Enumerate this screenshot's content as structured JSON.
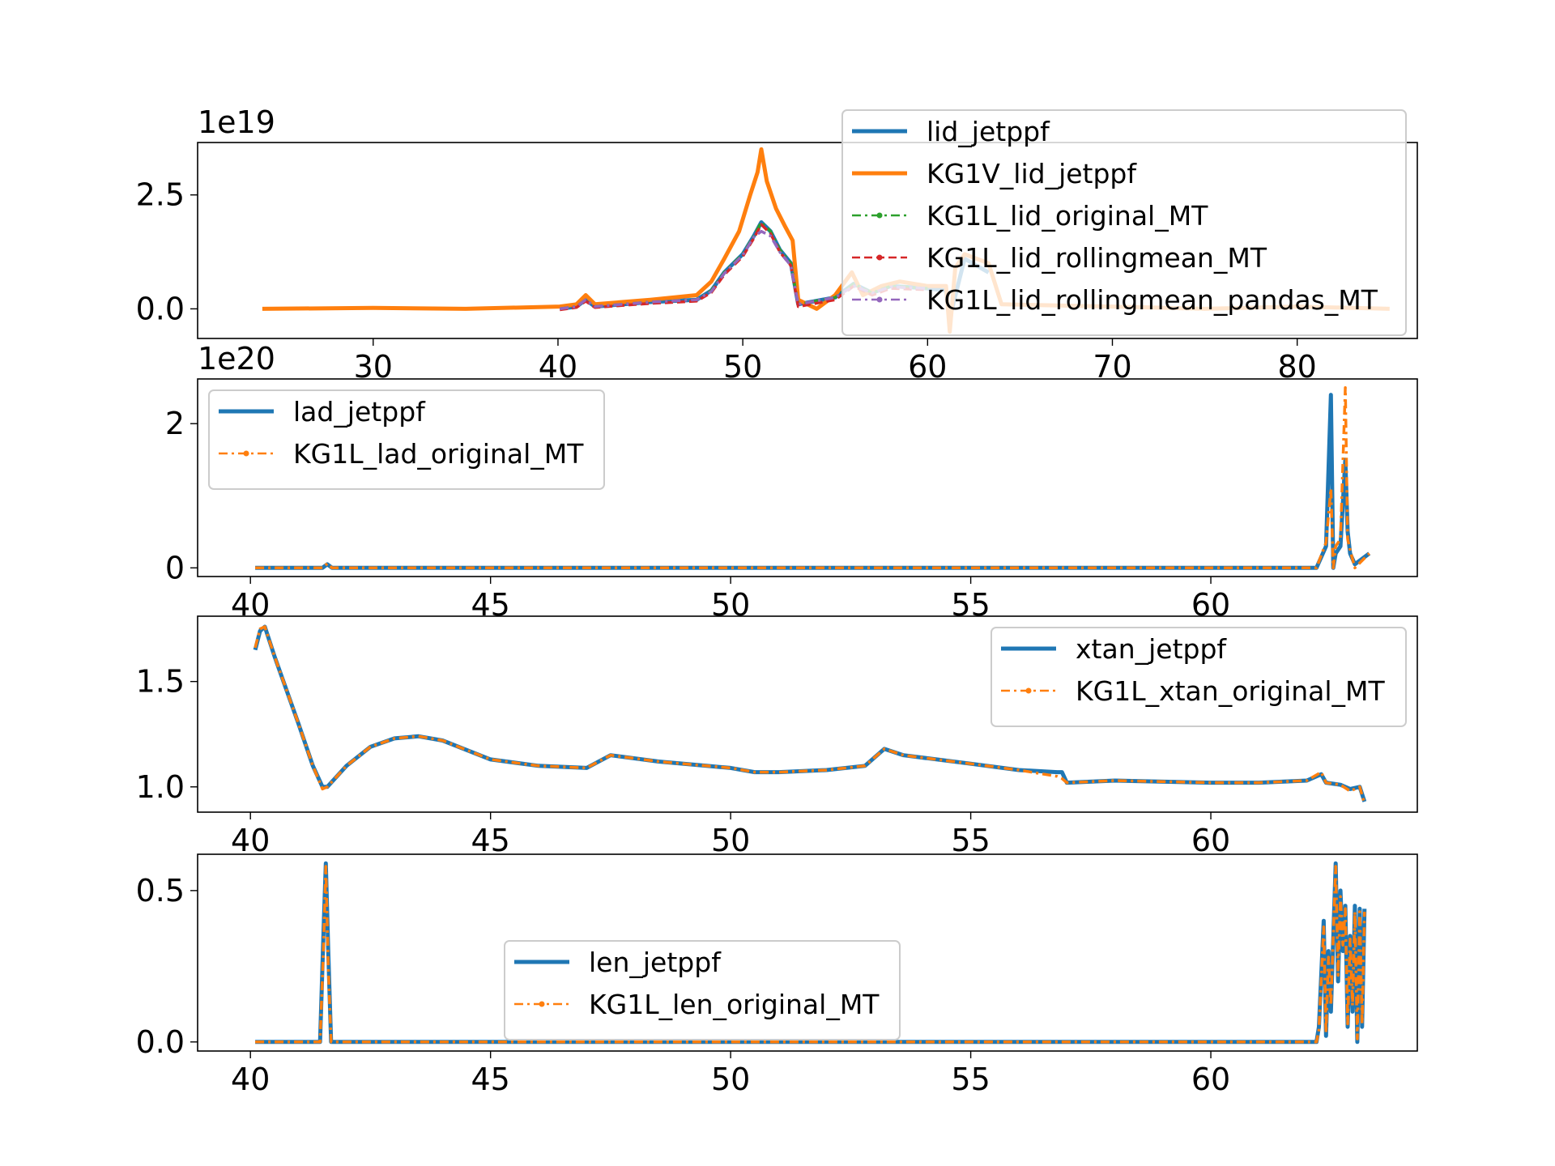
{
  "chart_data": [
    {
      "type": "line",
      "offset_text": "1e19",
      "xlim": [
        20.5,
        86.5
      ],
      "ylim": [
        -0.65,
        3.65
      ],
      "xticks": [
        30,
        40,
        50,
        60,
        70,
        80
      ],
      "yticks": [
        0.0,
        2.5
      ],
      "ytick_labels": [
        "0.0",
        "2.5"
      ],
      "legend_position": "upper-right",
      "series": [
        {
          "name": "lid_jetppf",
          "color": "#1f77b4",
          "style": "solid",
          "x": [
            40.1,
            41.0,
            41.5,
            42.0,
            45.0,
            47.5,
            48.3,
            49.0,
            50.0,
            50.6,
            51.0,
            51.5,
            52.0,
            52.6,
            53.0,
            55.0,
            56.0,
            57.0,
            58.0,
            60.0,
            61.0,
            61.2,
            62.0,
            63.3
          ],
          "y": [
            0.0,
            0.05,
            0.2,
            0.05,
            0.15,
            0.2,
            0.4,
            0.8,
            1.2,
            1.6,
            1.9,
            1.7,
            1.3,
            1.0,
            0.1,
            0.25,
            0.55,
            0.35,
            0.5,
            0.45,
            0.4,
            -0.2,
            1.1,
            0.8
          ]
        },
        {
          "name": "KG1V_lid_jetppf",
          "color": "#ff7f0e",
          "style": "solid",
          "x": [
            24.0,
            30.0,
            35.0,
            40.1,
            41.0,
            41.5,
            42.0,
            45.0,
            47.5,
            48.3,
            49.0,
            49.8,
            50.4,
            50.8,
            51.0,
            51.3,
            51.8,
            52.3,
            52.7,
            53.0,
            54.0,
            55.0,
            55.9,
            56.5,
            57.5,
            58.5,
            60.0,
            61.0,
            61.2,
            61.5,
            62.0,
            63.3,
            64.0,
            70.0,
            75.0,
            80.0,
            85.0
          ],
          "y": [
            0.0,
            0.02,
            0.0,
            0.05,
            0.1,
            0.3,
            0.1,
            0.2,
            0.3,
            0.6,
            1.1,
            1.7,
            2.5,
            3.0,
            3.5,
            2.8,
            2.2,
            1.8,
            1.5,
            0.2,
            0.0,
            0.3,
            0.8,
            0.3,
            0.5,
            0.6,
            0.5,
            0.5,
            -0.5,
            0.9,
            1.2,
            1.0,
            0.1,
            0.05,
            0.0,
            0.05,
            0.0
          ]
        },
        {
          "name": "KG1L_lid_original_MT",
          "color": "#2ca02c",
          "style": "dashdot",
          "x": [
            40.1,
            41.0,
            41.5,
            42.0,
            45.0,
            47.5,
            48.3,
            49.0,
            50.0,
            50.6,
            51.0,
            51.5,
            52.0,
            52.6,
            53.0,
            55.0,
            56.0,
            57.0,
            58.0,
            60.0
          ],
          "y": [
            0.0,
            0.05,
            0.2,
            0.05,
            0.15,
            0.2,
            0.4,
            0.8,
            1.2,
            1.6,
            1.9,
            1.7,
            1.3,
            1.0,
            0.1,
            0.25,
            0.55,
            0.35,
            0.5,
            0.45
          ]
        },
        {
          "name": "KG1L_lid_rollingmean_MT",
          "color": "#d62728",
          "style": "dashed",
          "x": [
            40.1,
            41.0,
            41.5,
            42.0,
            45.0,
            47.5,
            48.3,
            49.0,
            50.0,
            50.6,
            51.0,
            51.5,
            52.0,
            52.6,
            53.0,
            55.0,
            56.0,
            57.0,
            58.0,
            60.0
          ],
          "y": [
            -0.02,
            0.03,
            0.17,
            0.03,
            0.12,
            0.17,
            0.36,
            0.75,
            1.15,
            1.55,
            1.85,
            1.65,
            1.25,
            0.95,
            0.05,
            0.2,
            0.5,
            0.3,
            0.45,
            0.42
          ]
        },
        {
          "name": "KG1L_lid_rollingmean_pandas_MT",
          "color": "#9467bd",
          "style": "dashdot",
          "x": [
            40.1,
            41.0,
            41.5,
            42.0,
            45.0,
            47.5,
            48.3,
            49.0,
            50.0,
            50.6,
            51.0,
            51.5,
            52.0,
            52.6,
            53.0,
            55.0,
            56.0,
            57.0,
            58.0,
            60.0
          ],
          "y": [
            0.0,
            0.05,
            0.2,
            0.05,
            0.15,
            0.2,
            0.38,
            0.78,
            1.18,
            1.58,
            1.7,
            1.6,
            1.25,
            0.95,
            0.1,
            0.25,
            0.5,
            0.35,
            0.48,
            0.45
          ]
        }
      ]
    },
    {
      "type": "line",
      "offset_text": "1e20",
      "xlim": [
        38.9,
        64.3
      ],
      "ylim": [
        -0.12,
        2.62
      ],
      "xticks": [
        40,
        45,
        50,
        55,
        60
      ],
      "yticks": [
        0,
        2
      ],
      "ytick_labels": [
        "0",
        "2"
      ],
      "legend_position": "upper-left",
      "series": [
        {
          "name": "lad_jetppf",
          "color": "#1f77b4",
          "style": "solid",
          "x": [
            40.1,
            41.5,
            41.6,
            41.7,
            62.2,
            62.4,
            62.5,
            62.55,
            62.6,
            62.7,
            62.8,
            62.85,
            62.9,
            63.0,
            63.3
          ],
          "y": [
            0.0,
            0.0,
            0.05,
            0.0,
            0.0,
            0.3,
            2.4,
            0.0,
            0.2,
            0.3,
            1.5,
            0.5,
            0.2,
            0.05,
            0.2
          ]
        },
        {
          "name": "KG1L_lad_original_MT",
          "color": "#ff7f0e",
          "style": "dashdot",
          "x": [
            40.1,
            41.5,
            41.6,
            41.7,
            62.2,
            62.4,
            62.5,
            62.55,
            62.6,
            62.7,
            62.8,
            62.85,
            62.9,
            63.0,
            63.3
          ],
          "y": [
            0.0,
            0.0,
            0.06,
            0.0,
            0.0,
            0.35,
            1.1,
            0.0,
            0.3,
            0.4,
            2.5,
            0.4,
            0.25,
            0.0,
            0.2
          ]
        }
      ]
    },
    {
      "type": "line",
      "xlim": [
        38.9,
        64.3
      ],
      "ylim": [
        0.88,
        1.81
      ],
      "xticks": [
        40,
        45,
        50,
        55,
        60
      ],
      "yticks": [
        1.0,
        1.5
      ],
      "ytick_labels": [
        "1.0",
        "1.5"
      ],
      "legend_position": "upper-right",
      "series": [
        {
          "name": "xtan_jetppf",
          "color": "#1f77b4",
          "style": "solid",
          "x": [
            40.1,
            40.2,
            40.3,
            40.5,
            41.0,
            41.3,
            41.5,
            41.6,
            42.0,
            42.5,
            43.0,
            43.5,
            44.0,
            45.0,
            46.0,
            47.0,
            47.5,
            48.5,
            49.5,
            50.0,
            50.5,
            51.0,
            52.0,
            52.8,
            53.2,
            53.6,
            55.0,
            56.0,
            56.8,
            56.9,
            57.0,
            58.0,
            60.0,
            61.0,
            62.0,
            62.3,
            62.4,
            62.7,
            62.9,
            63.1,
            63.2
          ],
          "y": [
            1.65,
            1.74,
            1.76,
            1.62,
            1.3,
            1.1,
            1.0,
            1.0,
            1.1,
            1.19,
            1.23,
            1.24,
            1.22,
            1.13,
            1.1,
            1.09,
            1.15,
            1.12,
            1.1,
            1.09,
            1.07,
            1.07,
            1.08,
            1.1,
            1.18,
            1.15,
            1.11,
            1.08,
            1.07,
            1.07,
            1.02,
            1.03,
            1.02,
            1.02,
            1.03,
            1.06,
            1.02,
            1.01,
            0.99,
            1.0,
            0.93
          ]
        },
        {
          "name": "KG1L_xtan_original_MT",
          "color": "#ff7f0e",
          "style": "dashdot",
          "x": [
            40.1,
            40.2,
            40.3,
            40.5,
            41.0,
            41.3,
            41.5,
            41.6,
            42.0,
            42.5,
            43.0,
            43.5,
            44.0,
            45.0,
            46.0,
            47.0,
            47.5,
            48.5,
            49.5,
            50.0,
            50.5,
            51.0,
            52.0,
            52.8,
            53.2,
            53.6,
            55.0,
            56.0,
            56.8,
            56.9,
            57.0,
            58.0,
            60.0,
            61.0,
            62.0,
            62.3,
            62.4,
            62.7,
            62.9,
            63.1,
            63.2
          ],
          "y": [
            1.66,
            1.75,
            1.76,
            1.62,
            1.3,
            1.1,
            0.99,
            1.0,
            1.1,
            1.19,
            1.23,
            1.24,
            1.22,
            1.13,
            1.1,
            1.09,
            1.15,
            1.12,
            1.1,
            1.09,
            1.07,
            1.07,
            1.08,
            1.1,
            1.18,
            1.15,
            1.11,
            1.08,
            1.05,
            1.04,
            1.02,
            1.03,
            1.02,
            1.02,
            1.03,
            1.07,
            1.02,
            1.01,
            0.98,
            1.0,
            0.92
          ]
        }
      ]
    },
    {
      "type": "line",
      "xlim": [
        38.9,
        64.3
      ],
      "ylim": [
        -0.03,
        0.62
      ],
      "xticks": [
        40,
        45,
        50,
        55,
        60
      ],
      "yticks": [
        0.0,
        0.5
      ],
      "ytick_labels": [
        "0.0",
        "0.5"
      ],
      "legend_position": "lower-center",
      "series": [
        {
          "name": "len_jetppf",
          "color": "#1f77b4",
          "style": "solid",
          "x": [
            40.1,
            41.45,
            41.52,
            41.57,
            41.62,
            41.68,
            62.2,
            62.25,
            62.35,
            62.4,
            62.45,
            62.5,
            62.6,
            62.65,
            62.7,
            62.75,
            62.8,
            62.85,
            62.9,
            62.95,
            63.0,
            63.05,
            63.1,
            63.15,
            63.2
          ],
          "y": [
            0.0,
            0.0,
            0.35,
            0.59,
            0.3,
            0.0,
            0.0,
            0.05,
            0.4,
            0.02,
            0.3,
            0.1,
            0.59,
            0.2,
            0.5,
            0.3,
            0.45,
            0.05,
            0.35,
            0.1,
            0.45,
            0.0,
            0.44,
            0.05,
            0.44
          ]
        },
        {
          "name": "KG1L_len_original_MT",
          "color": "#ff7f0e",
          "style": "dashdot",
          "x": [
            40.1,
            41.45,
            41.52,
            41.57,
            41.62,
            41.68,
            62.2,
            62.25,
            62.35,
            62.4,
            62.45,
            62.5,
            62.6,
            62.65,
            62.7,
            62.75,
            62.8,
            62.85,
            62.9,
            62.95,
            63.0,
            63.05,
            63.1,
            63.15,
            63.2
          ],
          "y": [
            0.0,
            0.0,
            0.3,
            0.58,
            0.25,
            0.0,
            0.0,
            0.04,
            0.38,
            0.03,
            0.28,
            0.12,
            0.58,
            0.22,
            0.48,
            0.32,
            0.44,
            0.06,
            0.34,
            0.12,
            0.43,
            0.01,
            0.43,
            0.06,
            0.43
          ]
        }
      ]
    }
  ]
}
